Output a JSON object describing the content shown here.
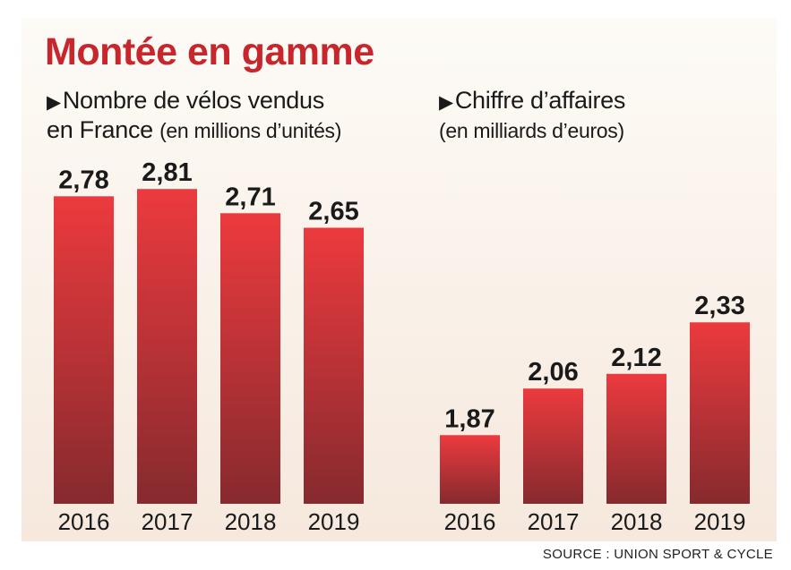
{
  "title": "Montée en gamme",
  "source": "SOURCE : UNION SPORT & CYCLE",
  "colors": {
    "title": "#c8262d",
    "bar_top": "#e8383c",
    "bar_bottom": "#8a2a2e",
    "panel": "#f6ece3"
  },
  "chart_data": [
    {
      "type": "bar",
      "title_line1": "Nombre de vélos vendus",
      "title_line2_main": "en France",
      "title_line2_paren": "(en millions d’unités)",
      "categories": [
        "2016",
        "2017",
        "2018",
        "2019"
      ],
      "values": [
        2.78,
        2.81,
        2.71,
        2.65
      ],
      "labels": [
        "2,78",
        "2,81",
        "2,71",
        "2,65"
      ]
    },
    {
      "type": "bar",
      "title_line1": "Chiffre d’affaires",
      "title_line2_paren": "(en milliards d’euros)",
      "categories": [
        "2016",
        "2017",
        "2018",
        "2019"
      ],
      "values": [
        1.87,
        2.06,
        2.12,
        2.33
      ],
      "labels": [
        "1,87",
        "2,06",
        "2,12",
        "2,33"
      ]
    }
  ]
}
